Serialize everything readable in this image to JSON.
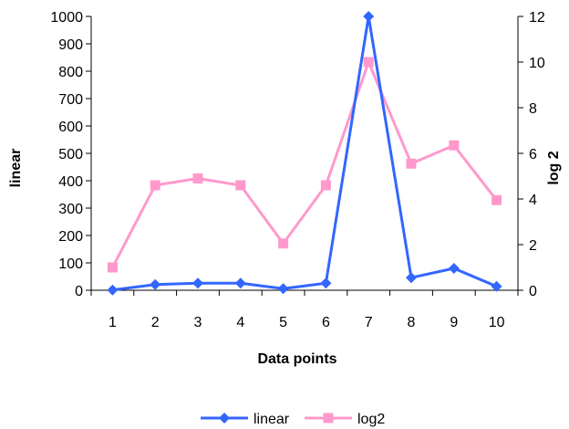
{
  "chart_data": {
    "type": "line",
    "x": [
      1,
      2,
      3,
      4,
      5,
      6,
      7,
      8,
      9,
      10
    ],
    "xlabel": "Data points",
    "y_left_label": "linear",
    "y_right_label": "log 2",
    "y_left_lim": [
      0,
      1000
    ],
    "y_right_lim": [
      0,
      12
    ],
    "y_left_ticks": [
      0,
      100,
      200,
      300,
      400,
      500,
      600,
      700,
      800,
      900,
      1000
    ],
    "y_right_ticks": [
      0,
      2,
      4,
      6,
      8,
      10,
      12
    ],
    "grid": false,
    "legend_position": "bottom",
    "series": [
      {
        "name": "linear",
        "axis": "left",
        "color": "#3366FF",
        "marker": "diamond",
        "values": [
          1,
          21,
          26,
          26,
          6,
          26,
          1000,
          46,
          80,
          14
        ]
      },
      {
        "name": "log2",
        "axis": "right",
        "color": "#FF99CC",
        "marker": "square",
        "values": [
          1,
          4.6,
          4.9,
          4.6,
          2.05,
          4.6,
          10,
          5.55,
          6.35,
          3.95
        ]
      }
    ]
  }
}
